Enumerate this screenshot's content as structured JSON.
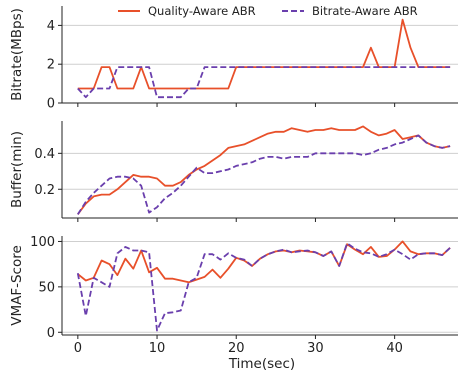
{
  "chart_data": {
    "type": "line",
    "xlabel": "Time(sec)",
    "x_ticks": [
      0,
      10,
      20,
      30,
      40
    ],
    "xlim": [
      -2,
      48
    ],
    "legend": {
      "placement": "top-center"
    },
    "colors": {
      "quality": "#e8502a",
      "bitrate": "#6a3fad"
    },
    "series_names": [
      "Quality-Aware ABR",
      "Bitrate-Aware ABR"
    ],
    "panels": [
      {
        "ylabel": "Bitrate(MBps)",
        "ylim": [
          0,
          5
        ],
        "y_ticks": [
          0,
          2,
          4
        ],
        "grid": true,
        "series": [
          {
            "name": "Quality-Aware ABR",
            "style": "solid",
            "x": [
              0,
              1,
              2,
              3,
              4,
              5,
              6,
              7,
              8,
              9,
              10,
              11,
              12,
              13,
              14,
              15,
              16,
              17,
              18,
              19,
              20,
              21,
              22,
              23,
              24,
              25,
              26,
              27,
              28,
              29,
              30,
              31,
              32,
              33,
              34,
              35,
              36,
              37,
              38,
              39,
              40,
              41,
              42,
              43,
              44,
              45,
              46,
              47
            ],
            "values": [
              0.75,
              0.75,
              0.75,
              1.85,
              1.85,
              0.75,
              0.75,
              0.75,
              1.85,
              0.75,
              0.75,
              0.75,
              0.75,
              0.75,
              0.75,
              0.75,
              0.75,
              0.75,
              0.75,
              0.75,
              1.85,
              1.85,
              1.85,
              1.85,
              1.85,
              1.85,
              1.85,
              1.85,
              1.85,
              1.85,
              1.85,
              1.85,
              1.85,
              1.85,
              1.85,
              1.85,
              1.85,
              2.85,
              1.85,
              1.85,
              1.85,
              4.3,
              2.85,
              1.85,
              1.85,
              1.85,
              1.85,
              1.85
            ]
          },
          {
            "name": "Bitrate-Aware ABR",
            "style": "dashed",
            "x": [
              0,
              1,
              2,
              3,
              4,
              5,
              6,
              7,
              8,
              9,
              10,
              11,
              12,
              13,
              14,
              15,
              16,
              17,
              18,
              19,
              20,
              21,
              22,
              23,
              24,
              25,
              26,
              27,
              28,
              29,
              30,
              31,
              32,
              33,
              34,
              35,
              36,
              37,
              38,
              39,
              40,
              41,
              42,
              43,
              44,
              45,
              46,
              47
            ],
            "values": [
              0.75,
              0.3,
              0.75,
              0.75,
              0.75,
              1.85,
              1.85,
              1.85,
              1.85,
              1.85,
              0.3,
              0.3,
              0.3,
              0.3,
              0.75,
              0.75,
              1.85,
              1.85,
              1.85,
              1.85,
              1.85,
              1.85,
              1.85,
              1.85,
              1.85,
              1.85,
              1.85,
              1.85,
              1.85,
              1.85,
              1.85,
              1.85,
              1.85,
              1.85,
              1.85,
              1.85,
              1.85,
              1.85,
              1.85,
              1.85,
              1.85,
              1.85,
              1.85,
              1.85,
              1.85,
              1.85,
              1.85,
              1.85
            ]
          }
        ]
      },
      {
        "ylabel": "Buffer(min)",
        "ylim": [
          0.04,
          0.58
        ],
        "y_ticks": [
          0.2,
          0.4
        ],
        "y_tick_labels": [
          "0.2",
          "0.4"
        ],
        "grid": true,
        "series": [
          {
            "name": "Quality-Aware ABR",
            "style": "solid",
            "x": [
              0,
              1,
              2,
              3,
              4,
              5,
              6,
              7,
              8,
              9,
              10,
              11,
              12,
              13,
              14,
              15,
              16,
              17,
              18,
              19,
              20,
              21,
              22,
              23,
              24,
              25,
              26,
              27,
              28,
              29,
              30,
              31,
              32,
              33,
              34,
              35,
              36,
              37,
              38,
              39,
              40,
              41,
              42,
              43,
              44,
              45,
              46,
              47
            ],
            "values": [
              0.06,
              0.12,
              0.16,
              0.17,
              0.17,
              0.2,
              0.24,
              0.28,
              0.27,
              0.27,
              0.26,
              0.22,
              0.22,
              0.24,
              0.28,
              0.31,
              0.33,
              0.36,
              0.39,
              0.43,
              0.44,
              0.45,
              0.47,
              0.49,
              0.51,
              0.52,
              0.52,
              0.54,
              0.53,
              0.52,
              0.53,
              0.53,
              0.54,
              0.53,
              0.53,
              0.53,
              0.55,
              0.52,
              0.5,
              0.51,
              0.53,
              0.48,
              0.49,
              0.5,
              0.46,
              0.44,
              0.43,
              0.44
            ]
          },
          {
            "name": "Bitrate-Aware ABR",
            "style": "dashed",
            "x": [
              0,
              1,
              2,
              3,
              4,
              5,
              6,
              7,
              8,
              9,
              10,
              11,
              12,
              13,
              14,
              15,
              16,
              17,
              18,
              19,
              20,
              21,
              22,
              23,
              24,
              25,
              26,
              27,
              28,
              29,
              30,
              31,
              32,
              33,
              34,
              35,
              36,
              37,
              38,
              39,
              40,
              41,
              42,
              43,
              44,
              45,
              46,
              47
            ],
            "values": [
              0.06,
              0.13,
              0.18,
              0.22,
              0.26,
              0.27,
              0.27,
              0.26,
              0.22,
              0.07,
              0.1,
              0.15,
              0.18,
              0.22,
              0.27,
              0.32,
              0.29,
              0.29,
              0.3,
              0.31,
              0.33,
              0.34,
              0.35,
              0.37,
              0.38,
              0.38,
              0.37,
              0.38,
              0.38,
              0.38,
              0.4,
              0.4,
              0.4,
              0.4,
              0.4,
              0.4,
              0.39,
              0.4,
              0.42,
              0.43,
              0.45,
              0.46,
              0.48,
              0.5,
              0.46,
              0.44,
              0.43,
              0.44
            ]
          }
        ]
      },
      {
        "ylabel": "VMAF-Score",
        "ylim": [
          -3,
          106
        ],
        "y_ticks": [
          0,
          50,
          100
        ],
        "grid": true,
        "series": [
          {
            "name": "Quality-Aware ABR",
            "style": "solid",
            "x": [
              0,
              1,
              2,
              3,
              4,
              5,
              6,
              7,
              8,
              9,
              10,
              11,
              12,
              13,
              14,
              15,
              16,
              17,
              18,
              19,
              20,
              21,
              22,
              23,
              24,
              25,
              26,
              27,
              28,
              29,
              30,
              31,
              32,
              33,
              34,
              35,
              36,
              37,
              38,
              39,
              40,
              41,
              42,
              43,
              44,
              45,
              46,
              47
            ],
            "values": [
              64,
              57,
              60,
              79,
              75,
              63,
              81,
              70,
              90,
              66,
              71,
              59,
              59,
              57,
              55,
              58,
              61,
              69,
              60,
              70,
              82,
              79,
              73,
              81,
              86,
              89,
              90,
              88,
              90,
              89,
              88,
              84,
              89,
              73,
              97,
              91,
              86,
              94,
              83,
              84,
              91,
              100,
              89,
              86,
              87,
              87,
              85,
              93
            ]
          },
          {
            "name": "Bitrate-Aware ABR",
            "style": "dashed",
            "x": [
              0,
              1,
              2,
              3,
              4,
              5,
              6,
              7,
              8,
              9,
              10,
              11,
              12,
              13,
              14,
              15,
              16,
              17,
              18,
              19,
              20,
              21,
              22,
              23,
              24,
              25,
              26,
              27,
              28,
              29,
              30,
              31,
              32,
              33,
              34,
              35,
              36,
              37,
              38,
              39,
              40,
              41,
              42,
              43,
              44,
              45,
              46,
              47
            ],
            "values": [
              65,
              18,
              60,
              55,
              50,
              87,
              94,
              90,
              90,
              88,
              2,
              21,
              22,
              24,
              55,
              60,
              86,
              86,
              80,
              87,
              82,
              80,
              73,
              81,
              86,
              89,
              91,
              88,
              89,
              90,
              88,
              84,
              89,
              73,
              98,
              92,
              88,
              87,
              83,
              86,
              91,
              86,
              80,
              86,
              87,
              87,
              85,
              93
            ]
          }
        ]
      }
    ]
  }
}
